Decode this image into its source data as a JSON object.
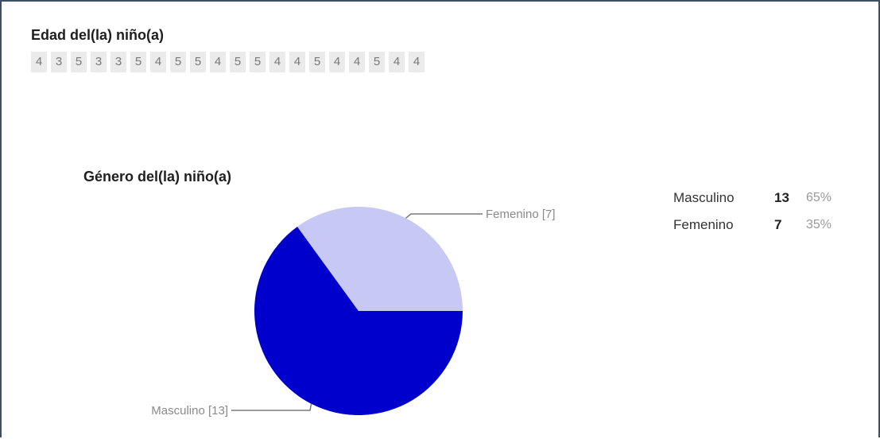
{
  "question_1": {
    "title": "Edad del(la) niño(a)",
    "answers": [
      "4",
      "3",
      "5",
      "3",
      "3",
      "5",
      "4",
      "5",
      "5",
      "4",
      "5",
      "5",
      "4",
      "4",
      "5",
      "4",
      "4",
      "5",
      "4",
      "4"
    ]
  },
  "question_2": {
    "title": "Género del(la) niño(a)",
    "summary": [
      {
        "label": "Masculino",
        "count": "13",
        "percent": "65%"
      },
      {
        "label": "Femenino",
        "count": "7",
        "percent": "35%"
      }
    ]
  },
  "chart_data": {
    "type": "pie",
    "title": "Género del(la) niño(a)",
    "slices": [
      {
        "label": "Masculino [13]",
        "name": "Masculino",
        "value": 13,
        "color": "#0000cc"
      },
      {
        "label": "Femenino [7]",
        "name": "Femenino",
        "value": 7,
        "color": "#c8c8f5"
      }
    ]
  }
}
